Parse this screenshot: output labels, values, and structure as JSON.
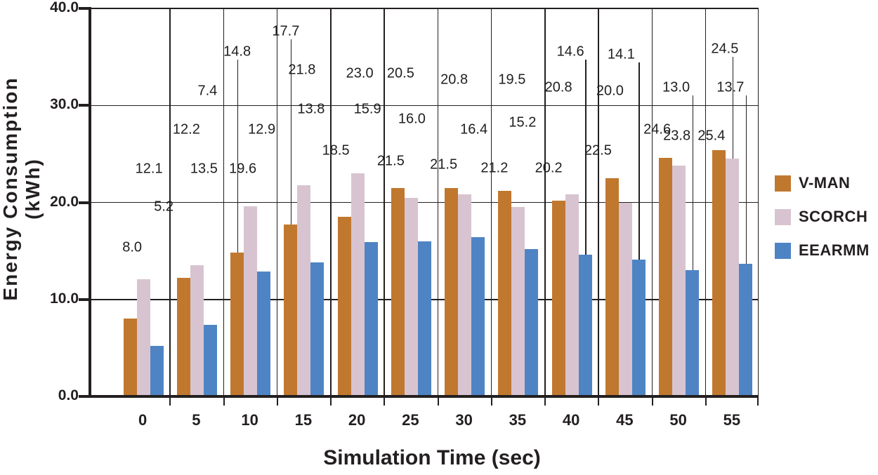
{
  "chart_data": {
    "type": "bar",
    "xlabel": "Simulation Time (sec)",
    "ylabel": "Energy Consumption (kWh)",
    "ylabel_lines": [
      "Energy Consumption",
      "(kWh)"
    ],
    "categories": [
      "0",
      "5",
      "10",
      "15",
      "20",
      "25",
      "30",
      "35",
      "40",
      "45",
      "50",
      "55"
    ],
    "series": [
      {
        "name": "V-MAN",
        "color": "#c0782f",
        "values": [
          8.0,
          12.2,
          14.8,
          17.7,
          18.5,
          21.5,
          21.5,
          21.2,
          20.2,
          22.5,
          24.6,
          25.4
        ]
      },
      {
        "name": "SCORCH",
        "color": "#d8c4d0",
        "values": [
          12.1,
          13.5,
          19.6,
          21.8,
          23.0,
          20.5,
          20.8,
          19.5,
          20.8,
          20.0,
          23.8,
          24.5
        ]
      },
      {
        "name": "EEARMM",
        "color": "#4f84c4",
        "values": [
          5.2,
          7.4,
          12.9,
          13.8,
          15.9,
          16.0,
          16.4,
          15.2,
          14.6,
          14.1,
          13.0,
          13.7
        ]
      }
    ],
    "ylim": [
      0,
      40
    ],
    "yticks": [
      "0.0",
      "10.0",
      "20.0",
      "30.0",
      "40.0"
    ],
    "grid": "horizontal lines at y ticks, vertical lines at category boundaries",
    "legend_position": "right",
    "label_format": "one decimal above bars, some with vertical leader lines",
    "label_layout": [
      [
        {
          "y": 15.3,
          "dx": -15
        },
        {
          "y": 23.4,
          "dx": 9
        },
        {
          "y": 19.5,
          "dx": 30
        }
      ],
      [
        {
          "y": 27.5,
          "dx": -14
        },
        {
          "y": 23.4,
          "dx": 11
        },
        {
          "y": 31.5,
          "dx": 16
        }
      ],
      [
        {
          "y": 35.5,
          "dx": -18,
          "leader": true
        },
        {
          "y": 23.4,
          "dx": -10
        },
        {
          "y": 27.5,
          "dx": 17
        }
      ],
      [
        {
          "y": 37.6,
          "dx": -25,
          "leader": true
        },
        {
          "y": 33.6,
          "dx": -2
        },
        {
          "y": 29.6,
          "dx": 11
        }
      ],
      [
        {
          "y": 25.3,
          "dx": -30
        },
        {
          "y": 33.3,
          "dx": 4
        },
        {
          "y": 29.6,
          "dx": 15
        }
      ],
      [
        {
          "y": 24.2,
          "dx": -28
        },
        {
          "y": 33.3,
          "dx": -14
        },
        {
          "y": 28.6,
          "dx": 2
        }
      ],
      [
        {
          "y": 23.9,
          "dx": -29
        },
        {
          "y": 32.6,
          "dx": -14
        },
        {
          "y": 27.5,
          "dx": 14
        }
      ],
      [
        {
          "y": 23.5,
          "dx": -33
        },
        {
          "y": 32.6,
          "dx": -8
        },
        {
          "y": 28.2,
          "dx": 7
        }
      ],
      [
        {
          "y": 23.5,
          "dx": -32
        },
        {
          "y": 31.8,
          "dx": -18
        },
        {
          "y": 35.5,
          "dx": -1,
          "leader": true
        }
      ],
      [
        {
          "y": 25.3,
          "dx": -38
        },
        {
          "y": 31.5,
          "dx": -21
        },
        {
          "y": 35.2,
          "dx": -5,
          "leader": true
        }
      ],
      [
        {
          "y": 27.5,
          "dx": -30
        },
        {
          "y": 26.8,
          "dx": -2
        },
        {
          "y": 31.8,
          "dx": -3,
          "leader": true
        }
      ],
      [
        {
          "y": 26.8,
          "dx": -29
        },
        {
          "y": 35.8,
          "dx": -10,
          "leader": true
        },
        {
          "y": 31.8,
          "dx": -2,
          "leader": true
        }
      ]
    ]
  }
}
